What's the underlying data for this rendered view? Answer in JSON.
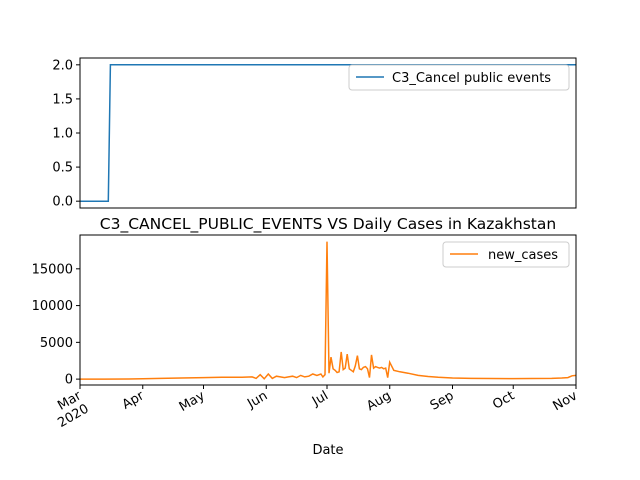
{
  "colors": {
    "series_1": "#1f77b4",
    "series_2": "#ff7f0e"
  },
  "chart_data": [
    {
      "type": "line",
      "title": "",
      "xlabel": "",
      "ylabel": "",
      "xlim": [
        "2020-03-01",
        "2020-11-01"
      ],
      "ylim": [
        -0.1,
        2.1
      ],
      "yticks": [
        0.0,
        0.5,
        1.0,
        1.5,
        2.0
      ],
      "ytick_labels": [
        "0.0",
        "0.5",
        "1.0",
        "1.5",
        "2.0"
      ],
      "grid": false,
      "legend_position": "upper right",
      "series": [
        {
          "name": "C3_Cancel public events",
          "color": "#1f77b4",
          "x": [
            "2020-03-01",
            "2020-03-15",
            "2020-03-16",
            "2020-11-01"
          ],
          "y": [
            0,
            0,
            2,
            2
          ]
        }
      ]
    },
    {
      "type": "line",
      "title": "C3_CANCEL_PUBLIC_EVENTS VS Daily Cases in Kazakhstan",
      "xlabel": "Date",
      "ylabel": "",
      "xlim": [
        "2020-03-01",
        "2020-11-01"
      ],
      "ylim": [
        -800,
        19600
      ],
      "yticks": [
        0,
        5000,
        10000,
        15000
      ],
      "ytick_labels": [
        "0",
        "5000",
        "10000",
        "15000"
      ],
      "xticks": [
        "2020-03-01",
        "2020-04-01",
        "2020-05-01",
        "2020-06-01",
        "2020-07-01",
        "2020-08-01",
        "2020-09-01",
        "2020-10-01",
        "2020-11-01"
      ],
      "xtick_labels": [
        "Mar\n2020",
        "Apr",
        "May",
        "Jun",
        "Jul",
        "Aug",
        "Sep",
        "Oct",
        "Nov"
      ],
      "grid": false,
      "legend_position": "upper right",
      "series": [
        {
          "name": "new_cases",
          "color": "#ff7f0e",
          "x": [
            "2020-03-01",
            "2020-03-13",
            "2020-03-25",
            "2020-04-01",
            "2020-04-10",
            "2020-04-20",
            "2020-05-01",
            "2020-05-10",
            "2020-05-20",
            "2020-05-25",
            "2020-05-27",
            "2020-05-29",
            "2020-05-31",
            "2020-06-02",
            "2020-06-04",
            "2020-06-06",
            "2020-06-08",
            "2020-06-10",
            "2020-06-12",
            "2020-06-14",
            "2020-06-16",
            "2020-06-18",
            "2020-06-20",
            "2020-06-22",
            "2020-06-24",
            "2020-06-26",
            "2020-06-28",
            "2020-06-29",
            "2020-06-30",
            "2020-07-01",
            "2020-07-02",
            "2020-07-03",
            "2020-07-04",
            "2020-07-05",
            "2020-07-06",
            "2020-07-07",
            "2020-07-08",
            "2020-07-09",
            "2020-07-10",
            "2020-07-11",
            "2020-07-12",
            "2020-07-13",
            "2020-07-14",
            "2020-07-15",
            "2020-07-16",
            "2020-07-17",
            "2020-07-18",
            "2020-07-19",
            "2020-07-20",
            "2020-07-21",
            "2020-07-22",
            "2020-07-23",
            "2020-07-24",
            "2020-07-25",
            "2020-07-26",
            "2020-07-27",
            "2020-07-28",
            "2020-07-29",
            "2020-07-30",
            "2020-07-31",
            "2020-08-01",
            "2020-08-03",
            "2020-08-06",
            "2020-08-10",
            "2020-08-15",
            "2020-08-20",
            "2020-08-25",
            "2020-09-01",
            "2020-09-10",
            "2020-09-20",
            "2020-10-01",
            "2020-10-10",
            "2020-10-20",
            "2020-10-25",
            "2020-10-28",
            "2020-10-30",
            "2020-11-01"
          ],
          "y": [
            0,
            0,
            20,
            60,
            100,
            150,
            200,
            250,
            250,
            300,
            100,
            600,
            50,
            700,
            100,
            400,
            300,
            200,
            300,
            400,
            200,
            500,
            300,
            400,
            700,
            500,
            700,
            300,
            600,
            18700,
            800,
            3000,
            1400,
            1200,
            900,
            1000,
            3700,
            1300,
            1500,
            3400,
            1400,
            1200,
            1000,
            1800,
            3200,
            1400,
            1300,
            1600,
            1700,
            1400,
            200,
            3300,
            1500,
            1700,
            1600,
            1500,
            1600,
            1400,
            1500,
            200,
            2300,
            1200,
            1000,
            800,
            500,
            350,
            250,
            150,
            100,
            80,
            70,
            80,
            100,
            150,
            200,
            450,
            500
          ]
        }
      ]
    }
  ]
}
